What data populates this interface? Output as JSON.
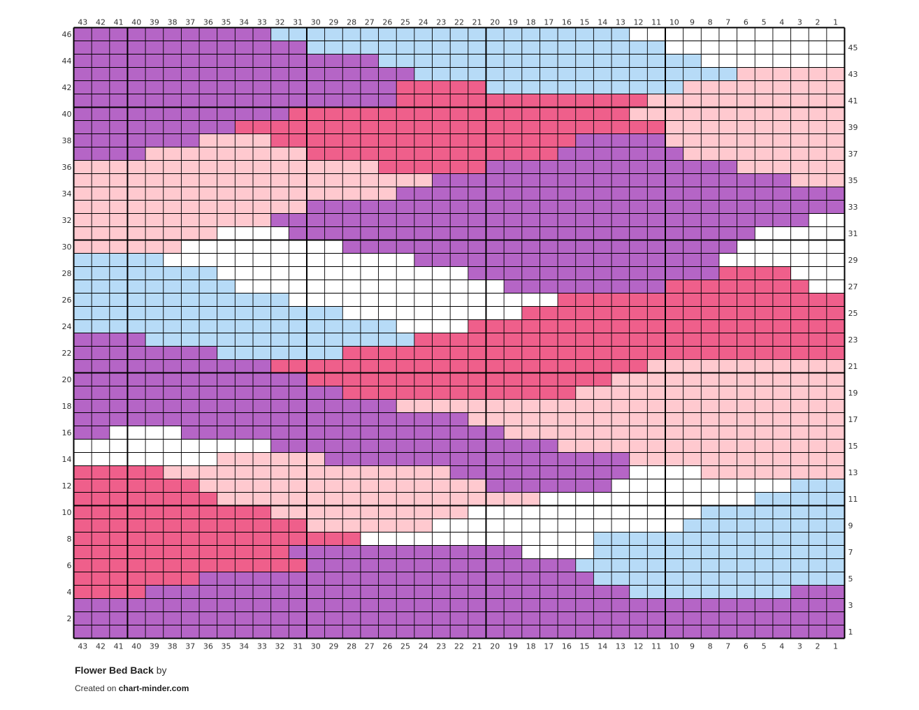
{
  "footer": {
    "title": "Flower Bed Back",
    "by": "by",
    "created_prefix": "Created on",
    "site": "chart-minder.com"
  },
  "chart_data": {
    "type": "heatmap",
    "columns": 43,
    "rows": 46,
    "column_labels_right_to_left": [
      1,
      2,
      3,
      4,
      5,
      6,
      7,
      8,
      9,
      10,
      11,
      12,
      13,
      14,
      15,
      16,
      17,
      18,
      19,
      20,
      21,
      22,
      23,
      24,
      25,
      26,
      27,
      28,
      29,
      30,
      31,
      32,
      33,
      34,
      35,
      36,
      37,
      38,
      39,
      40,
      41,
      42,
      43
    ],
    "row_labels_bottom_to_top": [
      1,
      2,
      3,
      4,
      5,
      6,
      7,
      8,
      9,
      10,
      11,
      12,
      13,
      14,
      15,
      16,
      17,
      18,
      19,
      20,
      21,
      22,
      23,
      24,
      25,
      26,
      27,
      28,
      29,
      30,
      31,
      32,
      33,
      34,
      35,
      36,
      37,
      38,
      39,
      40,
      41,
      42,
      43,
      44,
      45,
      46
    ],
    "colors": {
      "P": "#b565c6",
      "B": "#b7dbf7",
      "W": "#ffffff",
      "L": "#ffc9cf",
      "R": "#ef5f8b"
    },
    "grid_top_to_bottom": [
      "PPPPPPPPPPPBBBBBBBBBBBBBBBBBBBBWWWWWWWWWWWW",
      "PPPPPPPPPPPPPBBBBBBBBBBBBBBBBBBBBWWWWWWWWWW",
      "PPPPPPPPPPPPPPPPPBBBBBBBBBBBBBBBBBBWWWWWWWW",
      "PPPPPPPPPPPPPPPPPPPBBBBBBBBBBBBBBBBBBLLLLLL",
      "PPPPPPPPPPPPPPPPPPRRRRRBBBBBBBBBBBLLLLLLLLL",
      "PPPPPPPPPPPPPPPPPPRRRRRRRRRRRRRRLLLLLLLLLLL",
      "PPPPPPPPPPPPRRRRRRRRRRRRRRRRRRRLLLLLLLLLLLL",
      "PPPPPPPPPRRRRRRRRRRRRRRRRRRRRRRRRLLLLLLLLLL",
      "PPPPPPPLLLLRRRRRRRRRRRRRRRRRPPPPPLLLLLLLLLL",
      "PPPPLLLLLLLLLRRRRRRRRRRRRRRPPPPPPPLLLLLLLLL",
      "LLLLLLLLLLLLLLLLLRRRRRRPPPPPPPPPPPPPPLLLLLL",
      "LLLLLLLLLLLLLLLLLLLLPPPPPPPPPPPPPPPPPPPPLLL",
      "LLLLLLLLLLLLLLLLLLPPPPPPPPPPPPPPPPPPPPPPPPP",
      "LLLLLLLLLLLLLPPPPPPPPPPPPPPPPPPPPPPPPPPPPPP",
      "LLLLLLLLLLLPPPPPPPPPPPPPPPPPPPPPPPPPPPPPPWW",
      "LLLLLLLLWWWWPPPPPPPPPPPPPPPPPPPPPPPPPPWWWWW",
      "LLLLLLWWWWWWWWWPPPPPPPPPPPPPPPPPPPPPPWWWWWW",
      "BBBBBWWWWWWWWWWWWWWPPPPPPPPPPPPPPPPPWWWWWWW",
      "BBBBBBBBWWWWWWWWWWWWWWPPPPPPPPPPPPPPRRRRWWW",
      "BBBBBBBBBWWWWWWWWWWWWWWWPPPPPPPPPRRRRRRRRWW",
      "BBBBBBBBBBBBWWWWWWWWWWWWWWWRRRRRRRRRRRRRRRR",
      "BBBBBBBBBBBBBBBWWWWWWWWWWRRRRRRRRRRRRRRRRRR",
      "BBBBBBBBBBBBBBBBBBWWWWRRRRRRRRRRRRRRRRRRRRR",
      "PPPPBBBBBBBBBBBBBBBRRRRRRRRRRRRRRRRRRRRRRRR",
      "PPPPPPPPBBBBBBBRRRRRRRRRRRRRRRRRRRRRRRRRRRR",
      "PPPPPPPPPPPRRRRRRRRRRRRRRRRRRRRRLLLLLLLLLLL",
      "PPPPPPPPPPPPPRRRRRRRRRRRRRRRRRLLLLLLLLLLLLL",
      "PPPPPPPPPPPPPPPRRRRRRRRRRRRRLLLLLLLLLLLLLLL",
      "PPPPPPPPPPPPPPPPPPLLLLLLLLLLLLLLLLLLLLLLLLL",
      "PPPPPPPPPPPPPPPPPPPPPPLLLLLLLLLLLLLLLLLLLLL",
      "PPWWWWPPPPPPPPPPPPPPPPPPLLLLLLLLLLLLLLLLLLL",
      "WWWWWWWWWWWPPPPPPPPPPPPPPPPLLLLLLLLLLLLLLLL",
      "WWWWWWWWLLLLLLPPPPPPPPPPPPPPPPPLLLLLLLLLLLL",
      "RRRRRLLLLLLLLLLLLLLLLPPPPPPPPPPWWWWLLLLLLLL",
      "RRRRRRRLLLLLLLLLLLLLLLLPPPPPPPWWWWWWWWWWBBB",
      "RRRRRRRRLLLLLLLLLLLLLLLLLLWWWWWWWWWWWWBBBBB",
      "RRRRRRRRRRRLLLLLLLLLLLWWWWWWWWWWWWWBBBBBBBB",
      "RRRRRRRRRRRRRLLLLLLLWWWWWWWWWWWWWWBBBBBBBBB",
      "RRRRRRRRRRRRRRRRWWWWWWWWWWWWWBBBBBBBBBBBBBB",
      "RRRRRRRRRRRRPPPPPPPPPPPPPWWWWBBBBBBBBBBBBBB",
      "RRRRRRRRRRRRRPPPPPPPPPPPPPPPBBBBBBBBBBBBBBB",
      "RRRRRRRPPPPPPPPPPPPPPPPPPPPPPBBBBBBBBBBBBBB",
      "RRRRPPPPPPPPPPPPPPPPPPPPPPPPPPPBBBBBBBBBPPP",
      "PPPPPPPPPPPPPPPPPPPPPPPPPPPPPPPPPPPPPPPPPPP",
      "PPPPPPPPPPPPPPPPPPPPPPPPPPPPPPPPPPPPPPPPPPP",
      "PPPPPPPPPPPPPPPPPPPPPPPPPPPPPPPPPPPPPPPPPPP"
    ]
  }
}
